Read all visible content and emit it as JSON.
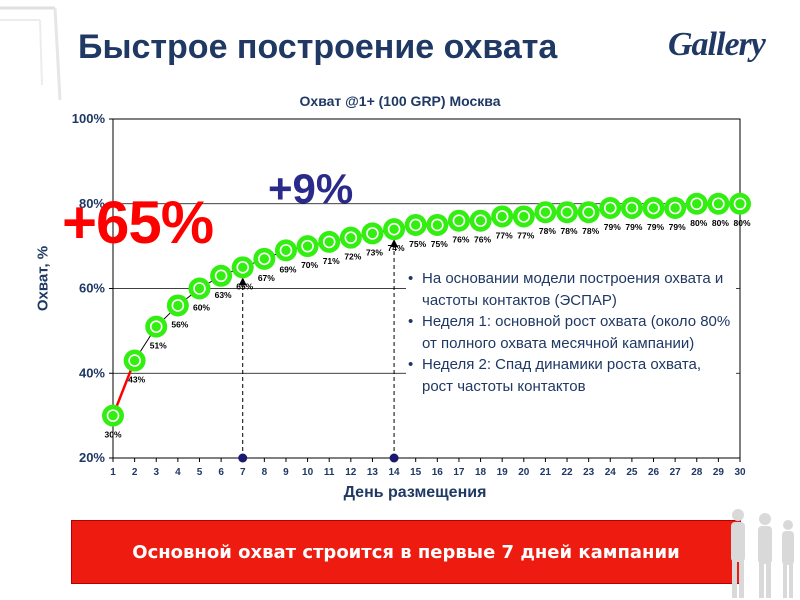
{
  "slide": {
    "title": "Быстрое построение охвата",
    "logo": "Gallery",
    "callout_big": "+65%",
    "callout_small": "+9%",
    "notes": [
      "На основании модели построения охвата и частоты контактов (ЭСПАР)",
      "Неделя 1: основной рост охвата (около 80% от полного охвата месячной кампании)",
      "Неделя 2: Спад динамики роста охвата, рост частоты контактов"
    ],
    "banner": "Основной охват строится в первые 7 дней кампании"
  },
  "colors": {
    "title": "#1f3864",
    "marker_fill": "#33ee11",
    "marker_ring": "#ffffff",
    "big_callout": "#ff0000",
    "small_callout": "#2a2a8a",
    "banner_bg": "#ee1c10"
  },
  "chart_data": {
    "type": "line",
    "title": "Охват @1+ (100 GRP) Москва",
    "xlabel": "День размещения",
    "ylabel": "Охват, %",
    "x": [
      1,
      2,
      3,
      4,
      5,
      6,
      7,
      8,
      9,
      10,
      11,
      12,
      13,
      14,
      15,
      16,
      17,
      18,
      19,
      20,
      21,
      22,
      23,
      24,
      25,
      26,
      27,
      28,
      29,
      30
    ],
    "series": [
      {
        "values": [
          30,
          43,
          51,
          56,
          60,
          63,
          65,
          67,
          69,
          70,
          71,
          72,
          73,
          74,
          75,
          75,
          76,
          76,
          77,
          77,
          78,
          78,
          78,
          79,
          79,
          79,
          79,
          80,
          80,
          80
        ],
        "labels": [
          "30%",
          "43%",
          "51%",
          "56%",
          "60%",
          "63%",
          "65%",
          "67%",
          "69%",
          "70%",
          "71%",
          "72%",
          "73%",
          "74%",
          "75%",
          "75%",
          "76%",
          "76%",
          "77%",
          "77%",
          "78%",
          "78%",
          "78%",
          "79%",
          "79%",
          "79%",
          "79%",
          "80%",
          "80%",
          "80%"
        ]
      }
    ],
    "ylim": [
      20,
      100
    ],
    "xlim": [
      1,
      30
    ],
    "yticks": [
      20,
      40,
      60,
      80,
      100
    ],
    "ytick_labels": [
      "20%",
      "40%",
      "60%",
      "80%",
      "100%"
    ],
    "grid": "horizontal",
    "markers_x": [
      7,
      14
    ]
  }
}
